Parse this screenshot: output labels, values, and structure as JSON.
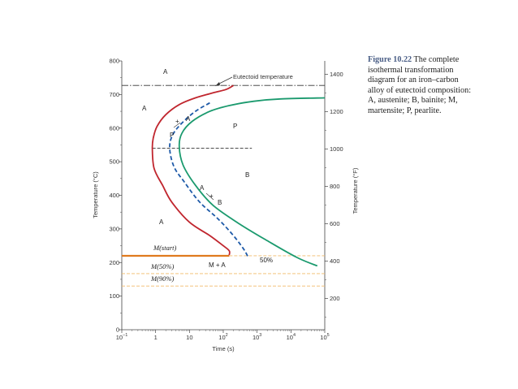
{
  "caption": {
    "label": "Figure 10.22",
    "text": "The complete isothermal transformation diagram for an iron–carbon alloy of eutectoid composition: A, austenite; B, bainite; M, martensite; P, pearlite."
  },
  "chart_data": {
    "type": "line",
    "xscale": "log",
    "xlabel": "Time (s)",
    "ylabel_left": "Temperature (°C)",
    "ylabel_right": "Temperature (°F)",
    "xlim": [
      0.1,
      100000
    ],
    "ylim": [
      0,
      800
    ],
    "x_ticks": [
      {
        "value": 0.1,
        "base": "10",
        "exp": "−1"
      },
      {
        "value": 1,
        "base": "1",
        "exp": ""
      },
      {
        "value": 10,
        "base": "10",
        "exp": ""
      },
      {
        "value": 100,
        "base": "10",
        "exp": "2"
      },
      {
        "value": 1000,
        "base": "10",
        "exp": "3"
      },
      {
        "value": 10000,
        "base": "10",
        "exp": "4"
      },
      {
        "value": 100000,
        "base": "10",
        "exp": "5"
      }
    ],
    "y_ticks_c": [
      "0",
      "100",
      "200",
      "300",
      "400",
      "500",
      "600",
      "700",
      "800"
    ],
    "y_ticks_f": [
      "200",
      "400",
      "600",
      "800",
      "1000",
      "1200",
      "1400"
    ],
    "eutectoid": {
      "y": 727,
      "label": "Eutectoid temperature"
    },
    "series": [
      {
        "color": "#c0262e",
        "dash": "",
        "points": [
          [
            200,
            727
          ],
          [
            120,
            715
          ],
          [
            50,
            705
          ],
          [
            15,
            690
          ],
          [
            5,
            670
          ],
          [
            2,
            640
          ],
          [
            1.1,
            605
          ],
          [
            0.85,
            570
          ],
          [
            0.8,
            540
          ],
          [
            0.9,
            480
          ],
          [
            1.6,
            430
          ],
          [
            3,
            380
          ],
          [
            10,
            320
          ],
          [
            40,
            280
          ],
          [
            100,
            250
          ],
          [
            150,
            235
          ],
          [
            150,
            222
          ]
        ]
      },
      {
        "color": "#1e5aa8",
        "dash": "5,3",
        "points": [
          [
            40,
            675
          ],
          [
            15,
            650
          ],
          [
            6,
            615
          ],
          [
            3.2,
            580
          ],
          [
            2.6,
            540
          ],
          [
            3.5,
            485
          ],
          [
            7,
            440
          ],
          [
            20,
            380
          ],
          [
            70,
            330
          ],
          [
            200,
            280
          ],
          [
            400,
            240
          ],
          [
            550,
            215
          ]
        ]
      },
      {
        "color": "#1b9a6e",
        "dash": "",
        "points": [
          [
            100000,
            690
          ],
          [
            5000,
            687
          ],
          [
            800,
            680
          ],
          [
            150,
            667
          ],
          [
            40,
            650
          ],
          [
            12,
            620
          ],
          [
            6,
            585
          ],
          [
            5,
            545
          ],
          [
            6.5,
            490
          ],
          [
            15,
            430
          ],
          [
            50,
            370
          ],
          [
            300,
            315
          ],
          [
            2000,
            265
          ],
          [
            15000,
            215
          ],
          [
            60000,
            190
          ]
        ]
      }
    ],
    "horizontal_lines": [
      {
        "label": "M(start)",
        "y": 220,
        "color": "#e07a1e",
        "style": "solid",
        "xmax": 150
      },
      {
        "label": "M(50%)",
        "y": 167,
        "color": "#f2bb6a",
        "style": "dashed"
      },
      {
        "label": "M(90%)",
        "y": 130,
        "color": "#f2bb6a",
        "style": "dashed"
      }
    ],
    "pearlite_bainite_boundary": {
      "y": 540,
      "xmin": 0.8,
      "xmax": 700
    },
    "region_labels": [
      "A",
      "A",
      "P",
      "B",
      "A",
      "M + A",
      "50%",
      "+",
      "+"
    ],
    "curve_labels": [
      "A",
      "P",
      "A",
      "B"
    ]
  }
}
